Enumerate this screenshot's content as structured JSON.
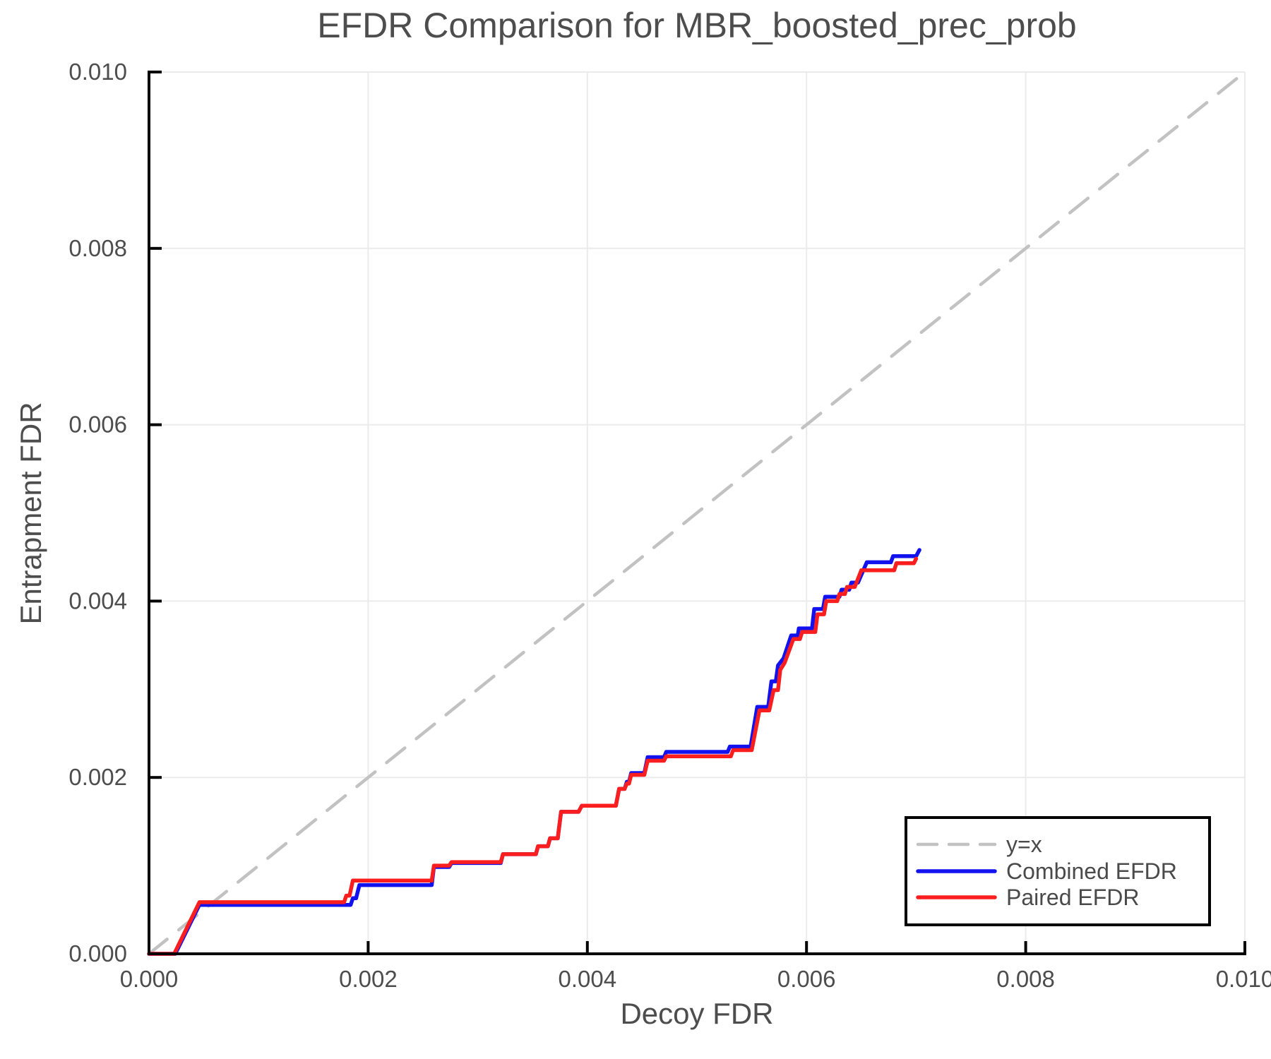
{
  "colors": {
    "background": "#ffffff",
    "axis": "#000000",
    "grid": "#ebebeb",
    "text": "#4d4d4d",
    "legend_text": "#4a4a4a",
    "legend_border": "#000000",
    "reference_dash": "#c2c2c2",
    "combined_blue": "#1212ef",
    "paired_red": "#fa1e1e"
  },
  "chart_data": {
    "type": "line",
    "title": "EFDR Comparison for MBR_boosted_prec_prob",
    "xlabel": "Decoy FDR",
    "ylabel": "Entrapment FDR",
    "xlim": [
      0,
      0.01
    ],
    "ylim": [
      0,
      0.01
    ],
    "grid": true,
    "legend_position": "lower-right",
    "xticks": [
      0,
      0.002,
      0.004,
      0.006,
      0.008,
      0.01
    ],
    "xtick_labels": [
      "0.000",
      "0.002",
      "0.004",
      "0.006",
      "0.008",
      "0.010"
    ],
    "yticks": [
      0,
      0.002,
      0.004,
      0.006,
      0.008,
      0.01
    ],
    "ytick_labels": [
      "0.000",
      "0.002",
      "0.004",
      "0.006",
      "0.008",
      "0.010"
    ],
    "series": [
      {
        "name": "y=x",
        "style": "dashed",
        "color": "#c2c2c2",
        "width": 4.5,
        "x": [
          0,
          0.01
        ],
        "y": [
          0,
          0.01
        ]
      },
      {
        "name": "Combined EFDR",
        "style": "solid",
        "color": "#1212ef",
        "width": 5.5,
        "x": [
          0,
          0.00024,
          0.00046,
          0.00184,
          0.00186,
          0.00189,
          0.00192,
          0.00258,
          0.0026,
          0.00274,
          0.00276,
          0.00321,
          0.00323,
          0.00353,
          0.00355,
          0.00364,
          0.00366,
          0.00373,
          0.00376,
          0.00392,
          0.00395,
          0.00426,
          0.00429,
          0.00434,
          0.00436,
          0.00438,
          0.0044,
          0.00452,
          0.00455,
          0.0047,
          0.00472,
          0.00528,
          0.0053,
          0.00549,
          0.00555,
          0.00565,
          0.00568,
          0.00572,
          0.00574,
          0.00579,
          0.00586,
          0.00592,
          0.00593,
          0.00605,
          0.00607,
          0.00615,
          0.00617,
          0.0063,
          0.00632,
          0.00639,
          0.00641,
          0.00647,
          0.00655,
          0.00677,
          0.00679,
          0.007,
          0.00703
        ],
        "y": [
          0,
          0,
          0.000555,
          0.000555,
          0.00063,
          0.00063,
          0.00078,
          0.00078,
          0.000985,
          0.000985,
          0.00103,
          0.00103,
          0.00113,
          0.00113,
          0.00122,
          0.00122,
          0.00131,
          0.00131,
          0.00161,
          0.00161,
          0.00168,
          0.00168,
          0.00187,
          0.00187,
          0.00195,
          0.00195,
          0.00205,
          0.00205,
          0.00223,
          0.00223,
          0.00229,
          0.00229,
          0.00235,
          0.00235,
          0.0028,
          0.0028,
          0.00309,
          0.00309,
          0.00327,
          0.00335,
          0.00361,
          0.00361,
          0.00369,
          0.00369,
          0.00391,
          0.00391,
          0.00405,
          0.00405,
          0.00413,
          0.00413,
          0.00421,
          0.00421,
          0.00444,
          0.00444,
          0.00451,
          0.00451,
          0.00458
        ]
      },
      {
        "name": "Paired EFDR",
        "style": "solid",
        "color": "#fa1e1e",
        "width": 5.5,
        "x": [
          0,
          0.00023,
          0.00046,
          0.00178,
          0.0018,
          0.00183,
          0.00186,
          0.00258,
          0.0026,
          0.00274,
          0.00276,
          0.00321,
          0.00323,
          0.00353,
          0.00355,
          0.00364,
          0.00366,
          0.00373,
          0.00376,
          0.00392,
          0.00395,
          0.00426,
          0.00429,
          0.00434,
          0.00436,
          0.00438,
          0.0044,
          0.00452,
          0.00455,
          0.0047,
          0.00472,
          0.00531,
          0.00533,
          0.0055,
          0.00557,
          0.00566,
          0.0057,
          0.00574,
          0.00576,
          0.0058,
          0.00588,
          0.00594,
          0.00596,
          0.00608,
          0.0061,
          0.00616,
          0.00618,
          0.00628,
          0.0063,
          0.00635,
          0.00637,
          0.00644,
          0.0065,
          0.0068,
          0.00682,
          0.00698,
          0.007
        ],
        "y": [
          0,
          0,
          0.000585,
          0.000585,
          0.00066,
          0.00066,
          0.00083,
          0.00083,
          0.001,
          0.001,
          0.00104,
          0.00104,
          0.00113,
          0.00113,
          0.00122,
          0.00122,
          0.00131,
          0.00131,
          0.00161,
          0.00161,
          0.00168,
          0.00168,
          0.00187,
          0.00187,
          0.00193,
          0.00193,
          0.00203,
          0.00203,
          0.00219,
          0.00219,
          0.00224,
          0.00224,
          0.00231,
          0.00231,
          0.00276,
          0.00276,
          0.00299,
          0.00299,
          0.00322,
          0.0033,
          0.00357,
          0.00357,
          0.00365,
          0.00365,
          0.00385,
          0.00385,
          0.004,
          0.004,
          0.00408,
          0.00408,
          0.00416,
          0.00416,
          0.00435,
          0.00435,
          0.00443,
          0.00443,
          0.00448
        ]
      }
    ]
  }
}
